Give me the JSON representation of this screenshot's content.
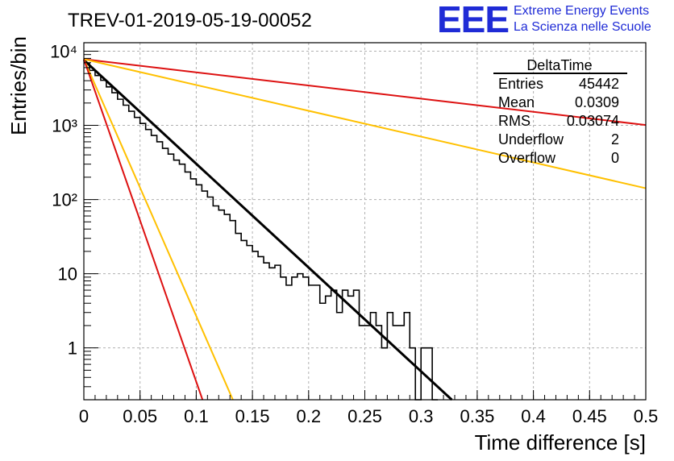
{
  "chart_data": {
    "type": "histogram",
    "title": "TREV-01-2019-05-19-00052",
    "xlabel": "Time difference [s]",
    "ylabel": "Entries/bin",
    "xlim": [
      0,
      0.5
    ],
    "ylim": [
      0.2,
      13000
    ],
    "y_scale": "log",
    "grid": true,
    "x_ticks": [
      0,
      0.05,
      0.1,
      0.15,
      0.2,
      0.25,
      0.3,
      0.35,
      0.4,
      0.45,
      0.5
    ],
    "x_tick_labels": [
      "0",
      "0.05",
      "0.1",
      "0.15",
      "0.2",
      "0.25",
      "0.3",
      "0.35",
      "0.4",
      "0.45",
      "0.5"
    ],
    "y_ticks": [
      1,
      10,
      100,
      1000,
      10000
    ],
    "y_tick_labels": [
      "1",
      "10",
      "10²",
      "10³",
      "10⁴"
    ],
    "histogram": {
      "bin_width": 0.005,
      "bin_low_edges": [
        0,
        0.005,
        0.01,
        0.015,
        0.02,
        0.025,
        0.03,
        0.035,
        0.04,
        0.045,
        0.05,
        0.055,
        0.06,
        0.065,
        0.07,
        0.075,
        0.08,
        0.085,
        0.09,
        0.095,
        0.1,
        0.105,
        0.11,
        0.115,
        0.12,
        0.125,
        0.13,
        0.135,
        0.14,
        0.145,
        0.15,
        0.155,
        0.16,
        0.165,
        0.17,
        0.175,
        0.18,
        0.185,
        0.19,
        0.195,
        0.2,
        0.205,
        0.21,
        0.215,
        0.22,
        0.225,
        0.23,
        0.235,
        0.24,
        0.245,
        0.25,
        0.255,
        0.26,
        0.265,
        0.27,
        0.275,
        0.28,
        0.285,
        0.29,
        0.295,
        0.3,
        0.305,
        0.31
      ],
      "counts": [
        6900,
        5500,
        4700,
        4050,
        3300,
        2750,
        2250,
        1870,
        1550,
        1280,
        1060,
        880,
        730,
        600,
        490,
        410,
        340,
        300,
        235,
        190,
        158,
        130,
        108,
        82,
        72,
        63,
        52,
        35,
        28,
        24,
        20,
        17,
        14,
        12,
        13,
        9,
        7,
        9,
        10,
        9,
        7,
        7,
        4,
        5,
        6,
        3,
        6,
        5,
        6,
        2,
        2,
        3,
        2,
        1,
        3,
        2,
        2,
        3,
        1,
        0,
        1,
        1,
        0
      ]
    },
    "series": [
      {
        "type": "line",
        "name": "",
        "color": "#000000",
        "points": [
          [
            0,
            7600
          ],
          [
            0.3274,
            0.2
          ]
        ]
      },
      {
        "type": "line",
        "name": "",
        "color": "#dd1111",
        "points": [
          [
            0,
            7800
          ],
          [
            0.5,
            1010
          ]
        ]
      },
      {
        "type": "line",
        "name": "",
        "color": "#ffc000",
        "points": [
          [
            0,
            7800
          ],
          [
            0.5,
            142
          ]
        ]
      },
      {
        "type": "line",
        "name": "",
        "color": "#ffc000",
        "points": [
          [
            0,
            7800
          ],
          [
            0.1326,
            0.2
          ]
        ]
      },
      {
        "type": "line",
        "name": "",
        "color": "#dd1111",
        "points": [
          [
            0,
            7800
          ],
          [
            0.1056,
            0.2
          ]
        ]
      }
    ],
    "stats_box": {
      "title": "DeltaTime",
      "rows": [
        {
          "label": "Entries",
          "value": "45442"
        },
        {
          "label": "Mean",
          "value": "0.0309"
        },
        {
          "label": "RMS",
          "value": "0.03074"
        },
        {
          "label": "Underflow",
          "value": "2"
        },
        {
          "label": "Overflow",
          "value": "0"
        }
      ]
    }
  },
  "logo": {
    "mark": "EEE",
    "line1": "Extreme Energy Events",
    "line2": "La Scienza nelle Scuole"
  }
}
